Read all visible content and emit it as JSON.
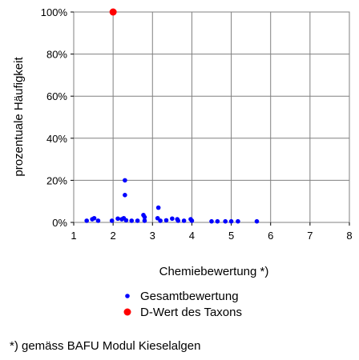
{
  "chart_data": {
    "type": "scatter",
    "xlabel": "Chemiebewertung *)",
    "ylabel": "prozentuale Häufigkeit",
    "xlim": [
      1,
      8
    ],
    "ylim": [
      0,
      100
    ],
    "x_ticks": [
      "1",
      "2",
      "3",
      "4",
      "5",
      "6",
      "7",
      "8"
    ],
    "y_ticks": [
      "0%",
      "20%",
      "40%",
      "60%",
      "80%",
      "100%"
    ],
    "grid": true,
    "legend_position": "bottom",
    "series": [
      {
        "name": "Gesamtbewertung",
        "color": "#0000ff",
        "points": [
          [
            1.33,
            0.8
          ],
          [
            1.47,
            1.5
          ],
          [
            1.52,
            2.0
          ],
          [
            1.62,
            0.8
          ],
          [
            1.97,
            0.8
          ],
          [
            2.12,
            1.8
          ],
          [
            2.22,
            1.5
          ],
          [
            2.27,
            2.0
          ],
          [
            2.3,
            20.0
          ],
          [
            2.3,
            13.0
          ],
          [
            2.33,
            1.0
          ],
          [
            2.47,
            0.8
          ],
          [
            2.62,
            0.8
          ],
          [
            2.77,
            3.5
          ],
          [
            2.8,
            2.5
          ],
          [
            2.8,
            0.8
          ],
          [
            3.13,
            2.0
          ],
          [
            3.15,
            7.0
          ],
          [
            3.2,
            0.8
          ],
          [
            3.35,
            1.0
          ],
          [
            3.5,
            1.8
          ],
          [
            3.63,
            1.5
          ],
          [
            3.65,
            0.8
          ],
          [
            3.8,
            0.8
          ],
          [
            3.97,
            1.5
          ],
          [
            4.0,
            0.8
          ],
          [
            4.5,
            0.5
          ],
          [
            4.65,
            0.5
          ],
          [
            4.85,
            0.5
          ],
          [
            5.0,
            0.5
          ],
          [
            5.17,
            0.5
          ],
          [
            5.65,
            0.5
          ]
        ]
      },
      {
        "name": "D-Wert des Taxons",
        "color": "#ff0000",
        "points": [
          [
            2.0,
            100
          ]
        ]
      }
    ]
  },
  "footnote": "*) gemäss BAFU Modul Kieselalgen"
}
